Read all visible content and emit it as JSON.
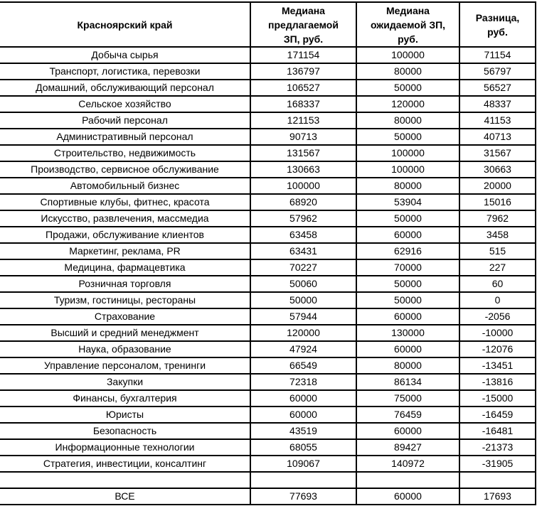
{
  "chart_data": {
    "type": "table",
    "region_header": "Красноярский край",
    "column_headers": [
      "Медиана\nпредлагаемой\nЗП, руб.",
      "Медиана\nожидаемой ЗП,\nруб.",
      "Разница,\nруб."
    ],
    "rows": [
      {
        "category": "Добыча сырья",
        "offered_median": 171154,
        "expected_median": 100000,
        "difference": 71154
      },
      {
        "category": "Транспорт, логистика, перевозки",
        "offered_median": 136797,
        "expected_median": 80000,
        "difference": 56797
      },
      {
        "category": "Домашний, обслуживающий персонал",
        "offered_median": 106527,
        "expected_median": 50000,
        "difference": 56527
      },
      {
        "category": "Сельское хозяйство",
        "offered_median": 168337,
        "expected_median": 120000,
        "difference": 48337
      },
      {
        "category": "Рабочий персонал",
        "offered_median": 121153,
        "expected_median": 80000,
        "difference": 41153
      },
      {
        "category": "Административный персонал",
        "offered_median": 90713,
        "expected_median": 50000,
        "difference": 40713
      },
      {
        "category": "Строительство, недвижимость",
        "offered_median": 131567,
        "expected_median": 100000,
        "difference": 31567
      },
      {
        "category": "Производство, сервисное обслуживание",
        "offered_median": 130663,
        "expected_median": 100000,
        "difference": 30663
      },
      {
        "category": "Автомобильный бизнес",
        "offered_median": 100000,
        "expected_median": 80000,
        "difference": 20000
      },
      {
        "category": "Спортивные клубы, фитнес, красота",
        "offered_median": 68920,
        "expected_median": 53904,
        "difference": 15016
      },
      {
        "category": "Искусство, развлечения, массмедиа",
        "offered_median": 57962,
        "expected_median": 50000,
        "difference": 7962
      },
      {
        "category": "Продажи, обслуживание клиентов",
        "offered_median": 63458,
        "expected_median": 60000,
        "difference": 3458
      },
      {
        "category": "Маркетинг, реклама, PR",
        "offered_median": 63431,
        "expected_median": 62916,
        "difference": 515
      },
      {
        "category": "Медицина, фармацевтика",
        "offered_median": 70227,
        "expected_median": 70000,
        "difference": 227
      },
      {
        "category": "Розничная торговля",
        "offered_median": 50060,
        "expected_median": 50000,
        "difference": 60
      },
      {
        "category": "Туризм, гостиницы, рестораны",
        "offered_median": 50000,
        "expected_median": 50000,
        "difference": 0
      },
      {
        "category": "Страхование",
        "offered_median": 57944,
        "expected_median": 60000,
        "difference": -2056
      },
      {
        "category": "Высший и средний менеджмент",
        "offered_median": 120000,
        "expected_median": 130000,
        "difference": -10000
      },
      {
        "category": "Наука, образование",
        "offered_median": 47924,
        "expected_median": 60000,
        "difference": -12076
      },
      {
        "category": "Управление персоналом, тренинги",
        "offered_median": 66549,
        "expected_median": 80000,
        "difference": -13451
      },
      {
        "category": "Закупки",
        "offered_median": 72318,
        "expected_median": 86134,
        "difference": -13816
      },
      {
        "category": "Финансы, бухгалтерия",
        "offered_median": 60000,
        "expected_median": 75000,
        "difference": -15000
      },
      {
        "category": "Юристы",
        "offered_median": 60000,
        "expected_median": 76459,
        "difference": -16459
      },
      {
        "category": "Безопасность",
        "offered_median": 43519,
        "expected_median": 60000,
        "difference": -16481
      },
      {
        "category": "Информационные технологии",
        "offered_median": 68055,
        "expected_median": 89427,
        "difference": -21373
      },
      {
        "category": "Стратегия, инвестиции, консалтинг",
        "offered_median": 109067,
        "expected_median": 140972,
        "difference": -31905
      }
    ],
    "total_row": {
      "category": "ВСЕ",
      "offered_median": 77693,
      "expected_median": 60000,
      "difference": 17693
    }
  },
  "colors": {
    "border": "#000000",
    "text": "#000000",
    "background": "#ffffff"
  }
}
